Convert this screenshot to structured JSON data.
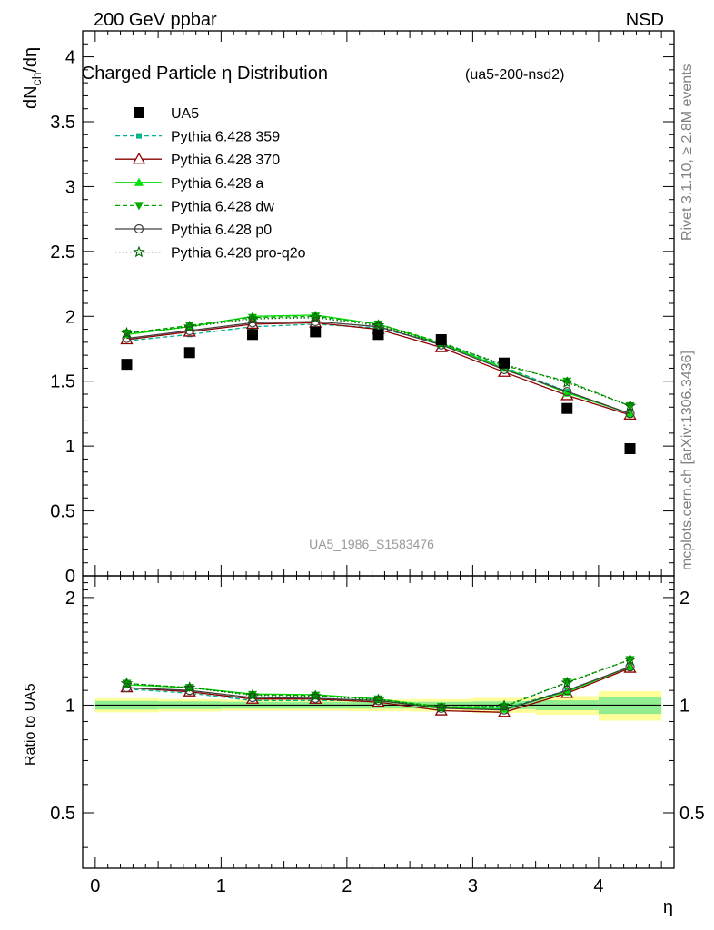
{
  "header": {
    "energy": "200 GeV ppbar",
    "process": "NSD"
  },
  "side_labels": {
    "rivet": "Rivet 3.1.10, ≥ 2.8M events",
    "mcplots": "mcplots.cern.ch [arXiv:1306.3436]"
  },
  "chart_data": [
    {
      "type": "line",
      "panel": "main",
      "title": "Charged Particle η Distribution",
      "subtitle": "(ua5-200-nsd2)",
      "watermark": "UA5_1986_S1583476",
      "ylabel": "dN_ch/dη",
      "xlim": [
        -0.1,
        4.6
      ],
      "ylim": [
        0,
        4.2
      ],
      "yticks": [
        0,
        0.5,
        1,
        1.5,
        2,
        2.5,
        3,
        3.5,
        4
      ],
      "ytick_labels": [
        "0",
        "0.5",
        "1",
        "1.5",
        "2",
        "2.5",
        "3",
        "3.5",
        "4"
      ],
      "legend_position": "top-left",
      "x": [
        0.25,
        0.75,
        1.25,
        1.75,
        2.25,
        2.75,
        3.25,
        3.75,
        4.25
      ],
      "series": [
        {
          "name": "UA5",
          "color": "#000000",
          "marker": "square",
          "line": "none",
          "values": [
            1.63,
            1.72,
            1.86,
            1.88,
            1.86,
            1.82,
            1.64,
            1.29,
            0.98
          ]
        },
        {
          "name": "Pythia 6.428 359",
          "color": "#00b38f",
          "marker": "square-small",
          "line": "dashed",
          "values": [
            1.81,
            1.86,
            1.92,
            1.94,
            1.91,
            1.79,
            1.61,
            1.42,
            1.25
          ]
        },
        {
          "name": "Pythia 6.428 370",
          "color": "#8b0000",
          "marker": "triangle-open",
          "line": "solid",
          "values": [
            1.82,
            1.88,
            1.94,
            1.95,
            1.9,
            1.76,
            1.57,
            1.39,
            1.24
          ]
        },
        {
          "name": "Pythia 6.428 a",
          "color": "#00dd00",
          "marker": "triangle",
          "line": "solid",
          "values": [
            1.86,
            1.92,
            2.0,
            2.01,
            1.94,
            1.79,
            1.6,
            1.41,
            1.25
          ]
        },
        {
          "name": "Pythia 6.428 dw",
          "color": "#00aa00",
          "marker": "triangle-down",
          "line": "dashed",
          "values": [
            1.87,
            1.93,
            1.99,
            2.0,
            1.94,
            1.8,
            1.62,
            1.5,
            1.31
          ]
        },
        {
          "name": "Pythia 6.428 p0",
          "color": "#404040",
          "marker": "circle-open",
          "line": "solid",
          "values": [
            1.83,
            1.89,
            1.95,
            1.96,
            1.92,
            1.78,
            1.59,
            1.42,
            1.25
          ]
        },
        {
          "name": "Pythia 6.428 pro-q2o",
          "color": "#006400",
          "marker": "star",
          "line": "dotted",
          "values": [
            1.87,
            1.92,
            1.98,
            1.99,
            1.93,
            1.79,
            1.63,
            1.49,
            1.31
          ]
        }
      ]
    },
    {
      "type": "line",
      "panel": "ratio",
      "ylabel": "Ratio to UA5",
      "xlabel": "η",
      "xlim": [
        -0.1,
        4.6
      ],
      "ylim": [
        0.35,
        2.3
      ],
      "xticks": [
        0,
        1,
        2,
        3,
        4
      ],
      "xtick_labels": [
        "0",
        "1",
        "2",
        "3",
        "4"
      ],
      "yticks": [
        0.5,
        1,
        2
      ],
      "ytick_labels": [
        "0.5",
        "1",
        "2"
      ],
      "x": [
        0.25,
        0.75,
        1.25,
        1.75,
        2.25,
        2.75,
        3.25,
        3.75,
        4.25
      ],
      "bands": {
        "stat_color": "#90ee90",
        "total_color": "#ffff99",
        "edges": [
          0,
          0.5,
          1.0,
          1.5,
          2.0,
          2.5,
          3.0,
          3.5,
          4.0,
          4.5
        ],
        "stat": [
          0.028,
          0.025,
          0.022,
          0.022,
          0.022,
          0.022,
          0.025,
          0.032,
          0.055
        ],
        "total": [
          0.045,
          0.04,
          0.035,
          0.035,
          0.038,
          0.04,
          0.048,
          0.06,
          0.095
        ]
      },
      "series": [
        {
          "name": "Pythia 6.428 359",
          "color": "#00b38f",
          "marker": "square-small",
          "line": "dashed",
          "values": [
            1.11,
            1.08,
            1.03,
            1.03,
            1.03,
            0.985,
            0.98,
            1.1,
            1.28
          ]
        },
        {
          "name": "Pythia 6.428 370",
          "color": "#8b0000",
          "marker": "triangle-open",
          "line": "solid",
          "values": [
            1.12,
            1.09,
            1.04,
            1.04,
            1.02,
            0.965,
            0.955,
            1.08,
            1.27
          ]
        },
        {
          "name": "Pythia 6.428 a",
          "color": "#00dd00",
          "marker": "triangle",
          "line": "solid",
          "values": [
            1.14,
            1.12,
            1.075,
            1.07,
            1.04,
            0.985,
            0.975,
            1.09,
            1.28
          ]
        },
        {
          "name": "Pythia 6.428 dw",
          "color": "#00aa00",
          "marker": "triangle-down",
          "line": "dashed",
          "values": [
            1.15,
            1.12,
            1.07,
            1.065,
            1.04,
            0.99,
            0.99,
            1.16,
            1.34
          ]
        },
        {
          "name": "Pythia 6.428 p0",
          "color": "#404040",
          "marker": "circle-open",
          "line": "solid",
          "values": [
            1.12,
            1.1,
            1.05,
            1.045,
            1.03,
            0.98,
            0.97,
            1.1,
            1.28
          ]
        },
        {
          "name": "Pythia 6.428 pro-q2o",
          "color": "#006400",
          "marker": "star",
          "line": "dotted",
          "values": [
            1.15,
            1.12,
            1.065,
            1.06,
            1.035,
            0.985,
            0.995,
            1.155,
            1.34
          ]
        }
      ]
    }
  ]
}
